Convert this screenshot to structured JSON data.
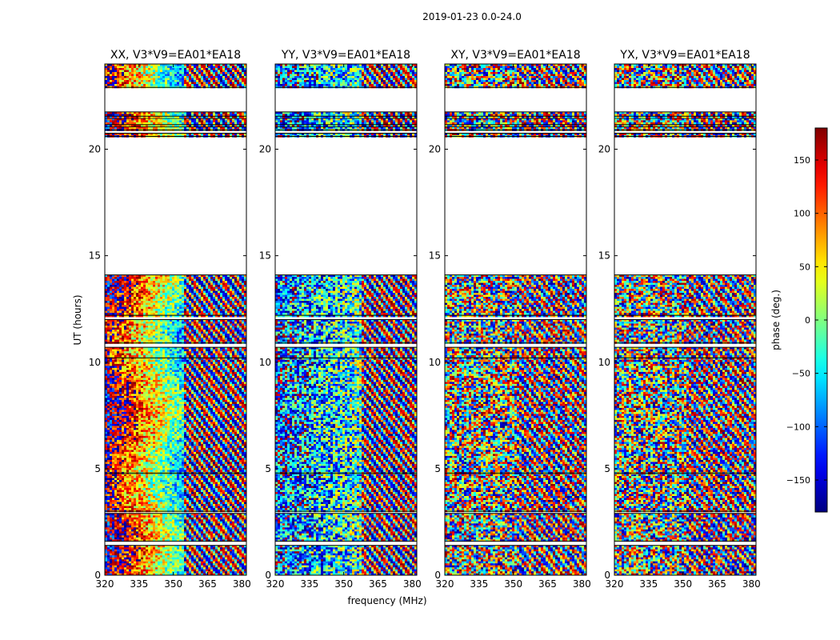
{
  "chart_data": {
    "type": "heatmap",
    "suptitle": "2019-01-23 0.0-24.0",
    "panels": [
      {
        "title": "XX, V3*V9=EA01*EA18",
        "pol": "XX"
      },
      {
        "title": "YY, V3*V9=EA01*EA18",
        "pol": "YY"
      },
      {
        "title": "XY, V3*V9=EA01*EA18",
        "pol": "XY"
      },
      {
        "title": "YX, V3*V9=EA01*EA18",
        "pol": "YX"
      }
    ],
    "xlabel": "frequency (MHz)",
    "ylabel": "UT (hours)",
    "xlim": [
      320,
      382
    ],
    "ylim": [
      0,
      24
    ],
    "xticks": [
      320,
      335,
      350,
      365,
      380
    ],
    "yticks": [
      0,
      5,
      10,
      15,
      20
    ],
    "data_rows_ut": [
      [
        0.0,
        1.4
      ],
      [
        1.6,
        2.9
      ],
      [
        3.0,
        4.75
      ],
      [
        4.8,
        10.2
      ],
      [
        10.2,
        10.7
      ],
      [
        10.9,
        12.0
      ],
      [
        12.2,
        14.1
      ],
      [
        20.6,
        20.75
      ],
      [
        20.9,
        21.05
      ],
      [
        21.15,
        21.45
      ],
      [
        21.55,
        21.75
      ],
      [
        22.9,
        24.0
      ]
    ],
    "phase_patterns": {
      "XX": "phase gradient from ~180 deg at low frequency through red/green to ~-150 deg near 355 MHz, then fringe stripes",
      "YY": "phase near -100 deg to 0 deg across band with fringe stripes at high frequency",
      "XY": "noisy phase with fringe stripes",
      "YX": "noisy phase with fringe stripes"
    },
    "colorbar": {
      "label": "phase (deg.)",
      "range": [
        -180,
        180
      ],
      "ticks": [
        -150,
        -100,
        -50,
        0,
        50,
        100,
        150
      ],
      "tick_labels": [
        "−150",
        "−100",
        "−50",
        "0",
        "50",
        "100",
        "150"
      ],
      "colormap": "jet"
    }
  },
  "colors": {
    "frame": "#000000",
    "background": "#ffffff"
  }
}
